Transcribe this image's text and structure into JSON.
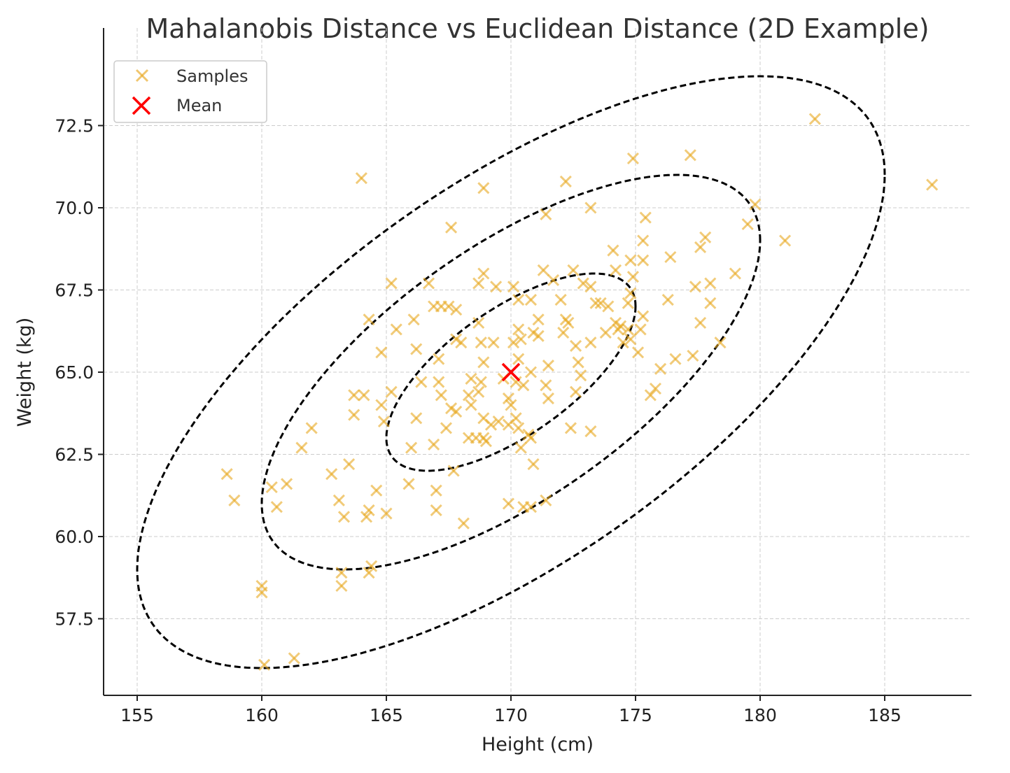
{
  "chart_data": {
    "type": "scatter",
    "title": "Mahalanobis Distance vs Euclidean Distance (2D Example)",
    "xlabel": "Height (cm)",
    "ylabel": "Weight (kg)",
    "xlim": [
      153.65,
      188.5
    ],
    "ylim": [
      55.15,
      74.9
    ],
    "xticks": [
      155,
      160,
      165,
      170,
      175,
      180,
      185
    ],
    "xtick_labels": [
      "155",
      "160",
      "165",
      "170",
      "175",
      "180",
      "185"
    ],
    "yticks": [
      57.5,
      60.0,
      62.5,
      65.0,
      67.5,
      70.0,
      72.5
    ],
    "ytick_labels": [
      "57.5",
      "60.0",
      "62.5",
      "65.0",
      "67.5",
      "70.0",
      "72.5"
    ],
    "grid": true,
    "legend": {
      "placement": "top-left",
      "entries": [
        "Samples",
        "Mean"
      ]
    },
    "colors": {
      "samples": "#E8A820",
      "mean": "#FF0000",
      "ellipse": "#000000"
    },
    "mean": [
      170,
      65
    ],
    "covariance": {
      "std_x": 5,
      "std_y": 3,
      "rho": 0.667
    },
    "ellipse_levels": [
      1,
      2,
      3
    ],
    "samples": [
      [
        182.2,
        72.7
      ],
      [
        186.9,
        70.7
      ],
      [
        164.0,
        70.9
      ],
      [
        168.9,
        70.6
      ],
      [
        174.9,
        71.5
      ],
      [
        177.2,
        71.6
      ],
      [
        172.2,
        70.8
      ],
      [
        167.6,
        69.4
      ],
      [
        171.4,
        69.8
      ],
      [
        173.2,
        70.0
      ],
      [
        179.8,
        70.1
      ],
      [
        179.5,
        69.5
      ],
      [
        181.0,
        69.0
      ],
      [
        177.8,
        69.1
      ],
      [
        175.4,
        69.7
      ],
      [
        179.0,
        68.0
      ],
      [
        177.6,
        68.8
      ],
      [
        176.4,
        68.5
      ],
      [
        178.0,
        67.7
      ],
      [
        177.4,
        67.6
      ],
      [
        176.3,
        67.2
      ],
      [
        177.6,
        66.5
      ],
      [
        178.0,
        67.1
      ],
      [
        178.4,
        65.9
      ],
      [
        177.3,
        65.5
      ],
      [
        176.6,
        65.4
      ],
      [
        176.0,
        65.1
      ],
      [
        175.8,
        64.5
      ],
      [
        175.6,
        64.3
      ],
      [
        175.2,
        66.3
      ],
      [
        175.1,
        65.6
      ],
      [
        158.6,
        61.9
      ],
      [
        158.9,
        61.1
      ],
      [
        160.0,
        58.5
      ],
      [
        160.0,
        58.3
      ],
      [
        160.1,
        56.1
      ],
      [
        161.3,
        56.3
      ],
      [
        161.6,
        62.7
      ],
      [
        162.0,
        63.3
      ],
      [
        160.4,
        61.5
      ],
      [
        161.0,
        61.6
      ],
      [
        160.6,
        60.9
      ],
      [
        163.1,
        61.1
      ],
      [
        163.3,
        60.6
      ],
      [
        162.8,
        61.9
      ],
      [
        163.5,
        62.2
      ],
      [
        164.3,
        66.6
      ],
      [
        165.2,
        67.7
      ],
      [
        164.8,
        65.6
      ],
      [
        165.4,
        66.3
      ],
      [
        163.7,
        64.3
      ],
      [
        164.1,
        64.3
      ],
      [
        163.7,
        63.7
      ],
      [
        164.8,
        64.0
      ],
      [
        164.9,
        63.5
      ],
      [
        165.2,
        64.4
      ],
      [
        164.3,
        60.8
      ],
      [
        164.2,
        60.6
      ],
      [
        164.6,
        61.4
      ],
      [
        165.0,
        60.7
      ],
      [
        163.2,
        58.9
      ],
      [
        163.2,
        58.5
      ],
      [
        164.3,
        58.9
      ],
      [
        164.4,
        59.1
      ],
      [
        165.9,
        61.6
      ],
      [
        166.0,
        62.7
      ],
      [
        166.2,
        63.6
      ],
      [
        166.7,
        67.7
      ],
      [
        166.9,
        67.0
      ],
      [
        166.1,
        66.6
      ],
      [
        166.2,
        65.7
      ],
      [
        166.4,
        64.7
      ],
      [
        166.9,
        62.8
      ],
      [
        167.0,
        61.4
      ],
      [
        167.0,
        60.8
      ],
      [
        167.1,
        65.4
      ],
      [
        167.1,
        64.7
      ],
      [
        167.2,
        64.3
      ],
      [
        167.4,
        63.3
      ],
      [
        167.6,
        63.9
      ],
      [
        167.8,
        66.0
      ],
      [
        167.7,
        62.0
      ],
      [
        167.8,
        66.9
      ],
      [
        168.0,
        65.9
      ],
      [
        168.1,
        60.4
      ],
      [
        168.4,
        64.0
      ],
      [
        168.6,
        63.0
      ],
      [
        168.7,
        64.4
      ],
      [
        168.8,
        64.7
      ],
      [
        168.7,
        66.5
      ],
      [
        168.7,
        67.7
      ],
      [
        168.9,
        68.0
      ],
      [
        168.8,
        65.9
      ],
      [
        168.9,
        65.3
      ],
      [
        168.9,
        63.6
      ],
      [
        168.9,
        63.0
      ],
      [
        169.0,
        62.9
      ],
      [
        169.2,
        63.4
      ],
      [
        169.3,
        65.9
      ],
      [
        169.4,
        67.6
      ],
      [
        169.5,
        63.5
      ],
      [
        169.7,
        64.8
      ],
      [
        169.9,
        64.2
      ],
      [
        170.0,
        64.0
      ],
      [
        169.9,
        63.4
      ],
      [
        170.1,
        65.9
      ],
      [
        170.1,
        67.6
      ],
      [
        170.3,
        67.2
      ],
      [
        170.3,
        66.3
      ],
      [
        170.4,
        66.0
      ],
      [
        170.5,
        64.6
      ],
      [
        170.2,
        63.6
      ],
      [
        170.3,
        63.3
      ],
      [
        170.7,
        63.1
      ],
      [
        170.8,
        67.2
      ],
      [
        170.9,
        66.2
      ],
      [
        170.8,
        63.0
      ],
      [
        170.9,
        62.2
      ],
      [
        169.9,
        61.0
      ],
      [
        170.5,
        60.9
      ],
      [
        170.8,
        60.9
      ],
      [
        171.4,
        61.1
      ],
      [
        171.3,
        68.1
      ],
      [
        171.7,
        67.8
      ],
      [
        172.0,
        67.2
      ],
      [
        172.2,
        66.6
      ],
      [
        172.1,
        66.2
      ],
      [
        172.3,
        66.5
      ],
      [
        172.5,
        68.1
      ],
      [
        172.6,
        65.8
      ],
      [
        172.7,
        65.3
      ],
      [
        172.6,
        64.4
      ],
      [
        172.4,
        63.3
      ],
      [
        172.8,
        64.9
      ],
      [
        173.2,
        63.2
      ],
      [
        172.9,
        67.7
      ],
      [
        173.2,
        67.6
      ],
      [
        173.2,
        65.9
      ],
      [
        173.4,
        67.1
      ],
      [
        173.6,
        67.1
      ],
      [
        173.8,
        66.2
      ],
      [
        173.9,
        67.0
      ],
      [
        174.1,
        68.7
      ],
      [
        174.2,
        68.1
      ],
      [
        174.2,
        66.5
      ],
      [
        174.3,
        66.3
      ],
      [
        174.4,
        66.4
      ],
      [
        174.5,
        65.9
      ],
      [
        174.7,
        66.3
      ],
      [
        174.8,
        67.4
      ],
      [
        174.8,
        68.4
      ],
      [
        174.7,
        67.1
      ],
      [
        174.8,
        66.0
      ],
      [
        174.9,
        67.9
      ],
      [
        175.3,
        68.4
      ],
      [
        175.3,
        69.0
      ],
      [
        175.3,
        66.7
      ],
      [
        171.4,
        64.6
      ],
      [
        171.5,
        64.2
      ],
      [
        171.5,
        65.2
      ],
      [
        171.1,
        66.6
      ],
      [
        171.1,
        66.1
      ],
      [
        170.8,
        65.0
      ],
      [
        168.4,
        64.8
      ],
      [
        168.3,
        64.3
      ],
      [
        168.3,
        63.0
      ],
      [
        170.3,
        65.4
      ],
      [
        170.2,
        64.7
      ],
      [
        170.4,
        62.7
      ],
      [
        167.5,
        67.0
      ],
      [
        167.2,
        67.0
      ],
      [
        167.8,
        63.8
      ]
    ]
  }
}
